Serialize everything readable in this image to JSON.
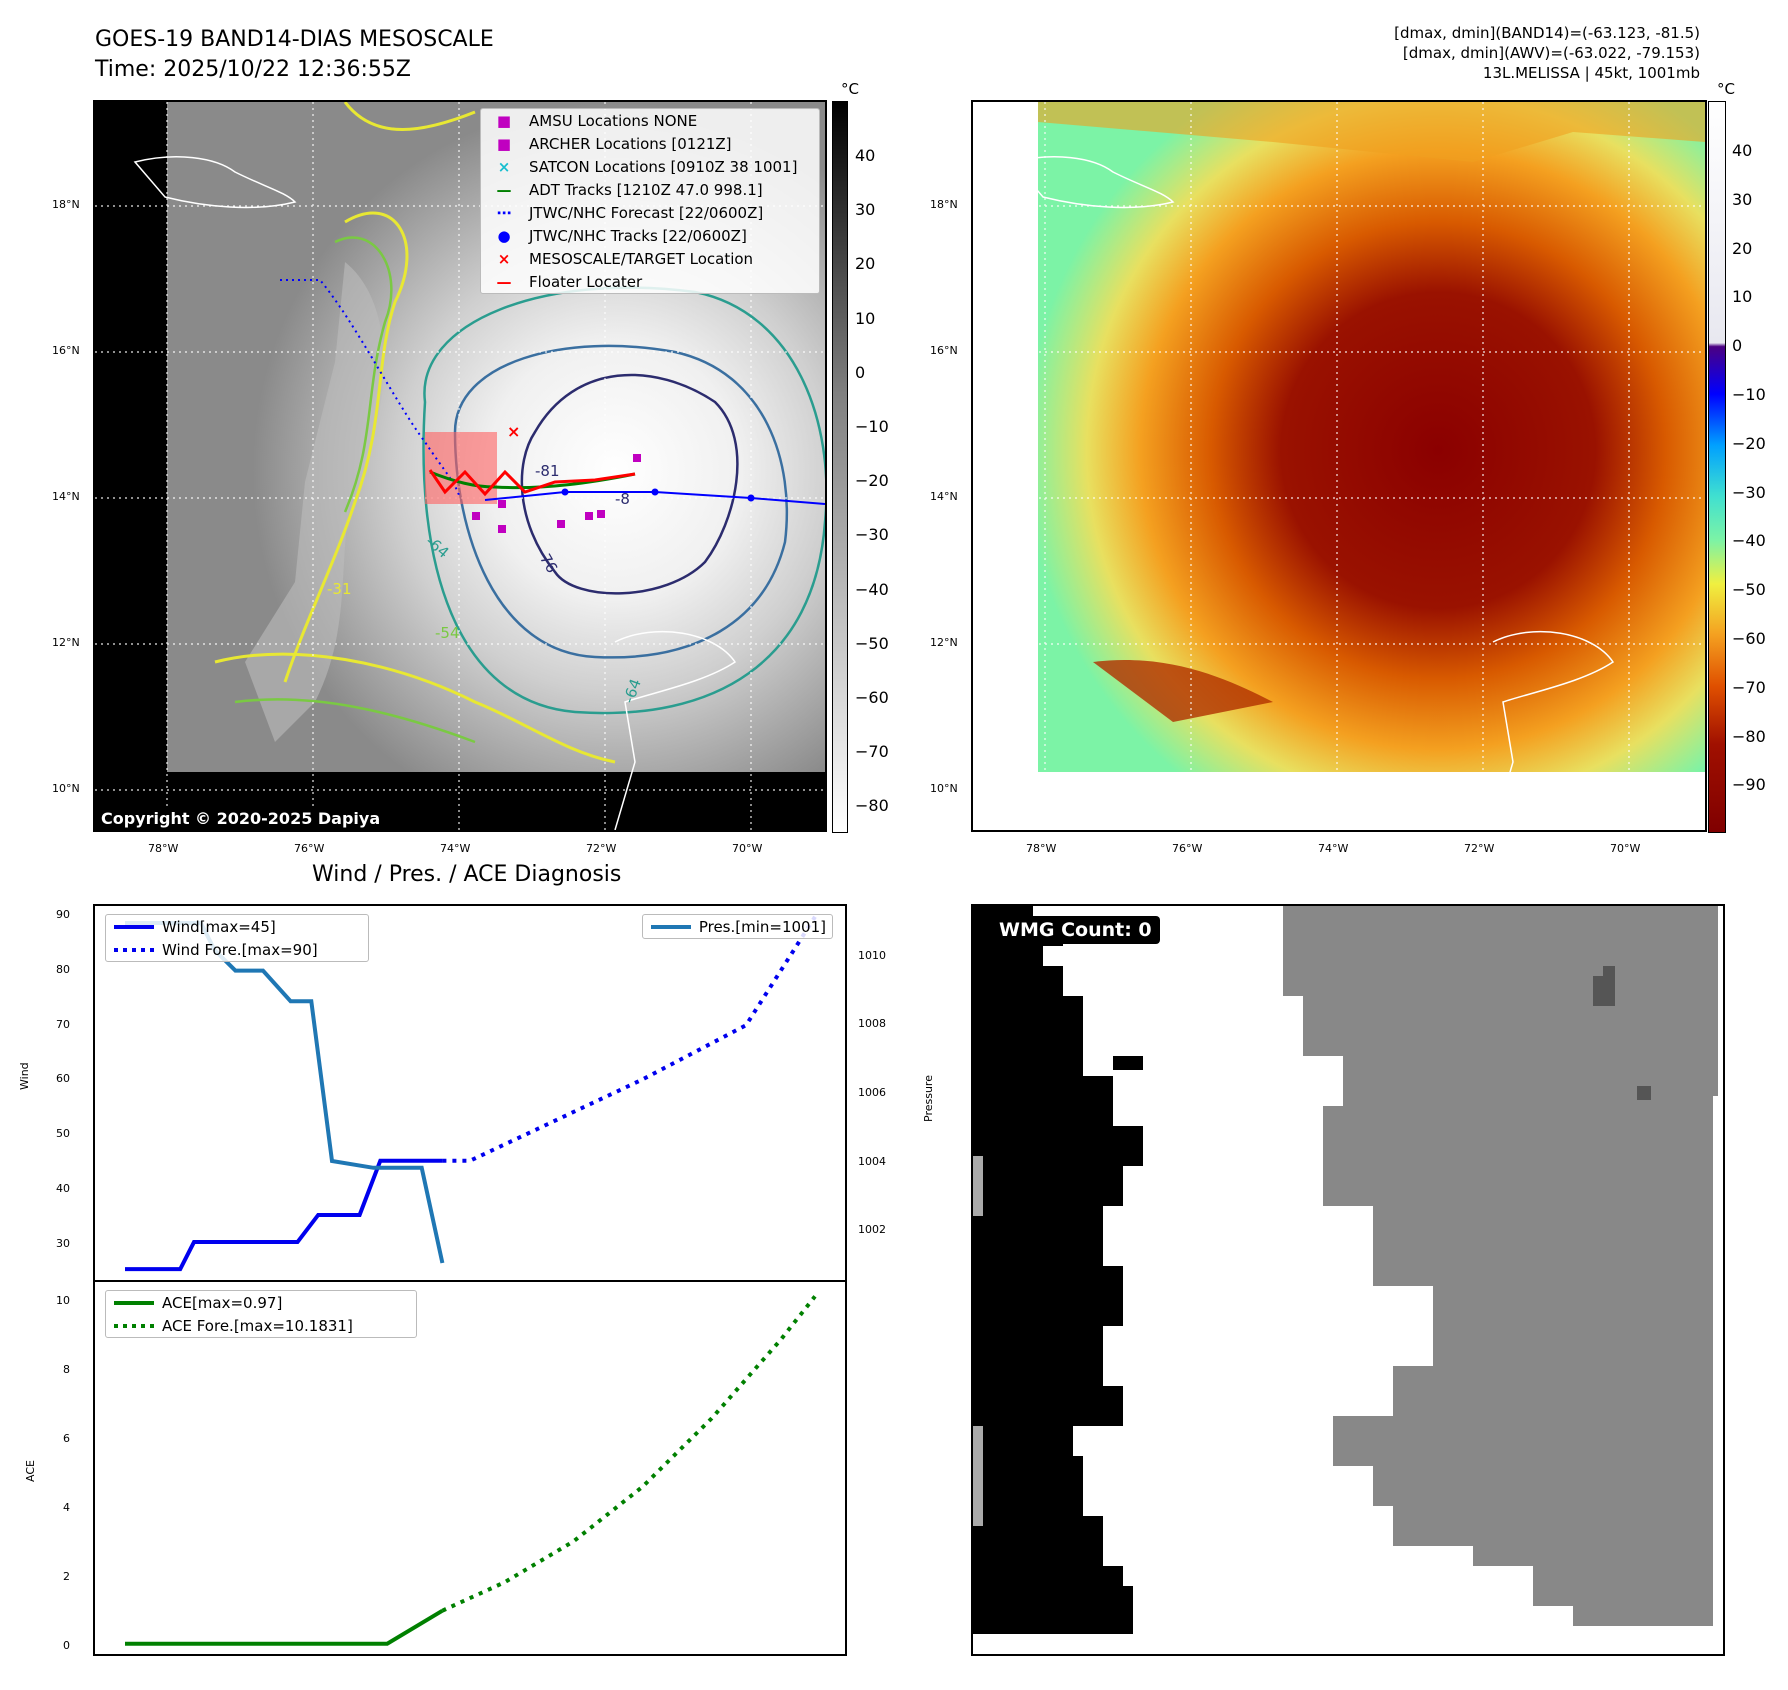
{
  "header": {
    "title_line1": "GOES-19 BAND14-DIAS MESOSCALE",
    "title_line2": "Time: 2025/10/22 12:36:55Z",
    "info_line1": "[dmax, dmin](BAND14)=(-63.123, -81.5)",
    "info_line2": "[dmax, dmin](AWV)=(-63.022, -79.153)",
    "info_line3": "13L.MELISSA | 45kt, 1001mb"
  },
  "map": {
    "lat_labels": [
      "18°N",
      "16°N",
      "14°N",
      "12°N",
      "10°N"
    ],
    "lon_labels": [
      "78°W",
      "76°W",
      "74°W",
      "72°W",
      "70°W"
    ],
    "copyright": "Copyright © 2020-2025 Dapiya",
    "contour_labels": [
      "-64",
      "-76",
      "-31",
      "-54",
      "-64",
      "-81",
      "-8"
    ],
    "legend": [
      {
        "label": "AMSU Locations NONE",
        "symbol": "■",
        "color": "#c000c0"
      },
      {
        "label": "ARCHER Locations [0121Z]",
        "symbol": "■",
        "color": "#c000c0"
      },
      {
        "label": "SATCON Locations [0910Z 38 1001]",
        "symbol": "×",
        "color": "#17becf"
      },
      {
        "label": "ADT Tracks [1210Z 47.0 998.1]",
        "symbol": "—",
        "color": "#008000"
      },
      {
        "label": "JTWC/NHC Forecast [22/0600Z]",
        "symbol": "⋯",
        "color": "#0000ff"
      },
      {
        "label": "JTWC/NHC Tracks [22/0600Z]",
        "symbol": "●",
        "color": "#0000ff"
      },
      {
        "label": "MESOSCALE/TARGET Location",
        "symbol": "×",
        "color": "#ff0000"
      },
      {
        "label": "Floater Locater",
        "symbol": "—",
        "color": "#ff0000"
      }
    ]
  },
  "colorbar_ir": {
    "unit": "°C",
    "ticks": [
      "40",
      "30",
      "20",
      "10",
      "0",
      "−10",
      "−20",
      "−30",
      "−40",
      "−50",
      "−60",
      "−70",
      "−80"
    ]
  },
  "colorbar_awv": {
    "unit": "°C",
    "ticks": [
      "40",
      "30",
      "20",
      "10",
      "0",
      "−10",
      "−20",
      "−30",
      "−40",
      "−50",
      "−60",
      "−70",
      "−80",
      "−90"
    ]
  },
  "diagnosis": {
    "title": "Wind / Pres. / ACE Diagnosis",
    "wind_label": "Wind",
    "pressure_label": "Pressure",
    "ace_label": "ACE",
    "legend_wind": "Wind[max=45]",
    "legend_wind_fore": "Wind Fore.[max=90]",
    "legend_pres": "Pres.[min=1001]",
    "legend_ace": "ACE[max=0.97]",
    "legend_ace_fore": "ACE Fore.[max=10.1831]",
    "wind_ticks": [
      "90",
      "80",
      "70",
      "60",
      "50",
      "40",
      "30"
    ],
    "pres_ticks": [
      "1010",
      "1008",
      "1006",
      "1004",
      "1002"
    ],
    "ace_ticks": [
      "10",
      "8",
      "6",
      "4",
      "2",
      "0"
    ]
  },
  "wmg": {
    "label": "WMG Count: 0"
  },
  "chart_data": [
    {
      "type": "line",
      "title": "Wind / Pres. / ACE Diagnosis",
      "ylabel": "Wind",
      "ylim": [
        23,
        92
      ],
      "x": [
        0,
        1,
        2,
        3,
        4,
        5,
        6,
        7,
        8,
        9,
        10,
        11,
        12,
        13,
        14,
        15,
        16,
        17,
        18,
        19,
        20,
        21,
        22,
        23,
        24,
        25,
        26,
        27,
        28,
        29,
        30,
        31,
        32,
        33,
        34,
        35,
        36,
        37,
        38,
        39,
        40,
        41,
        42,
        43,
        44,
        45,
        46,
        47,
        48,
        49,
        50
      ],
      "series": [
        {
          "name": "Wind[max=45]",
          "x": [
            0,
            8,
            10,
            25,
            28,
            34,
            37,
            46
          ],
          "values": [
            25,
            25,
            30,
            30,
            35,
            35,
            45,
            45
          ]
        },
        {
          "name": "Wind Fore.[max=90]",
          "x": [
            46,
            50,
            75,
            90,
            100
          ],
          "values": [
            45,
            45,
            60,
            70,
            90
          ]
        }
      ]
    },
    {
      "type": "line",
      "ylabel": "Pressure",
      "ylim": [
        1000.5,
        1011.5
      ],
      "series": [
        {
          "name": "Pres.[min=1001]",
          "x": [
            0,
            11,
            13,
            16,
            20,
            24,
            27,
            30,
            36,
            38,
            43,
            46
          ],
          "values": [
            1011,
            1011,
            1010.2,
            1009.6,
            1009.6,
            1008.7,
            1008.7,
            1004,
            1003.8,
            1003.8,
            1003.8,
            1001
          ]
        }
      ]
    },
    {
      "type": "line",
      "ylabel": "ACE",
      "ylim": [
        -0.3,
        10.6
      ],
      "series": [
        {
          "name": "ACE[max=0.97]",
          "x": [
            0,
            38,
            46
          ],
          "values": [
            0,
            0,
            0.97
          ]
        },
        {
          "name": "ACE Fore.[max=10.1831]",
          "x": [
            46,
            55,
            65,
            75,
            85,
            95,
            100
          ],
          "values": [
            0.97,
            1.8,
            3.0,
            4.6,
            6.6,
            8.9,
            10.18
          ]
        }
      ]
    }
  ]
}
